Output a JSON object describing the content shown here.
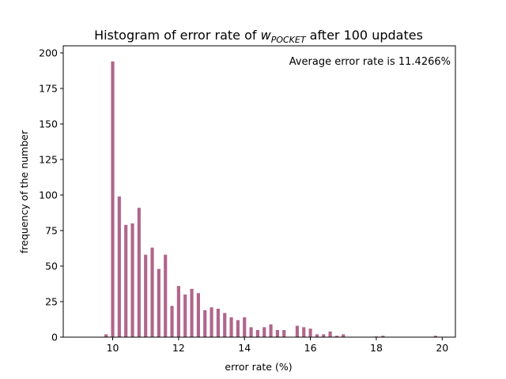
{
  "chart_data": {
    "type": "bar",
    "title_prefix": "Histogram of error rate of ",
    "title_var": "w",
    "title_sub": "POCKET",
    "title_suffix": " after 100 updates",
    "xlabel": "error rate (%)",
    "ylabel": "frequency of the number",
    "annotation": "Average error rate is 11.4266%",
    "xlim": [
      8.5,
      20.4
    ],
    "ylim": [
      0,
      205
    ],
    "xticks": [
      10,
      12,
      14,
      16,
      18,
      20
    ],
    "yticks": [
      0,
      25,
      50,
      75,
      100,
      125,
      150,
      175,
      200
    ],
    "bar_color": "#b0668c",
    "bar_width": 0.1,
    "x": [
      9.8,
      10.0,
      10.2,
      10.4,
      10.6,
      10.8,
      11.0,
      11.2,
      11.4,
      11.6,
      11.8,
      12.0,
      12.2,
      12.4,
      12.6,
      12.8,
      13.0,
      13.2,
      13.4,
      13.6,
      13.8,
      14.0,
      14.2,
      14.4,
      14.6,
      14.8,
      15.0,
      15.2,
      15.6,
      15.8,
      16.0,
      16.2,
      16.4,
      16.6,
      16.8,
      17.0,
      18.0,
      18.2,
      19.8
    ],
    "values": [
      2,
      194,
      99,
      79,
      80,
      91,
      58,
      63,
      48,
      58,
      22,
      36,
      30,
      34,
      31,
      19,
      21,
      20,
      17,
      14,
      12,
      14,
      7,
      5,
      7,
      9,
      5,
      5,
      8,
      7,
      6,
      2,
      2,
      4,
      1,
      2,
      0.5,
      1,
      1
    ]
  }
}
